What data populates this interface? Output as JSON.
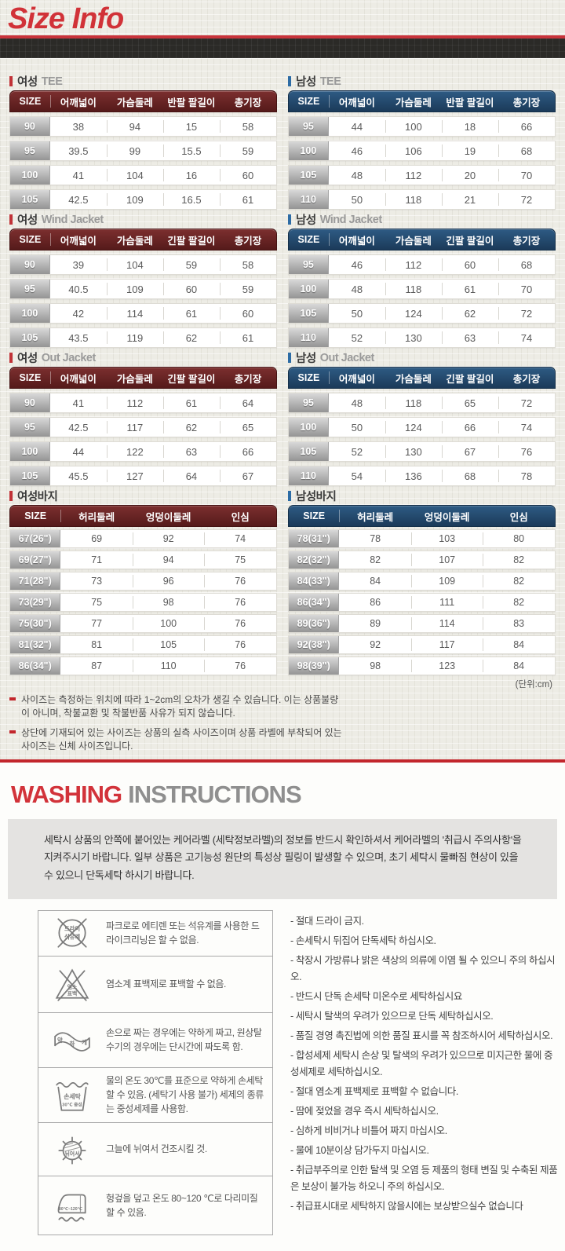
{
  "page": {
    "title": "Size Info",
    "unit_note": "(단위:cm)"
  },
  "colors": {
    "title_red": "#d13238",
    "accent_red": "#c13237",
    "accent_blue": "#2d6ca5",
    "header_maroon": "#5d1f1f",
    "header_navy": "#1e3c5d",
    "divider_red": "#c2262c",
    "size_cell_gray": "#a8a8a8"
  },
  "size_tables": [
    {
      "gender": "여성",
      "category": "TEE",
      "accent": "red",
      "headers": [
        "SIZE",
        "어깨넓이",
        "가슴둘레",
        "반팔 팔길이",
        "총기장"
      ],
      "rows": [
        [
          "90",
          "38",
          "94",
          "15",
          "58"
        ],
        [
          "95",
          "39.5",
          "99",
          "15.5",
          "59"
        ],
        [
          "100",
          "41",
          "104",
          "16",
          "60"
        ],
        [
          "105",
          "42.5",
          "109",
          "16.5",
          "61"
        ]
      ]
    },
    {
      "gender": "남성",
      "category": "TEE",
      "accent": "blue",
      "headers": [
        "SIZE",
        "어깨넓이",
        "가슴둘레",
        "반팔 팔길이",
        "총기장"
      ],
      "rows": [
        [
          "95",
          "44",
          "100",
          "18",
          "66"
        ],
        [
          "100",
          "46",
          "106",
          "19",
          "68"
        ],
        [
          "105",
          "48",
          "112",
          "20",
          "70"
        ],
        [
          "110",
          "50",
          "118",
          "21",
          "72"
        ]
      ]
    },
    {
      "gender": "여성",
      "category": "Wind Jacket",
      "accent": "red",
      "headers": [
        "SIZE",
        "어깨넓이",
        "가슴둘레",
        "긴팔 팔길이",
        "총기장"
      ],
      "rows": [
        [
          "90",
          "39",
          "104",
          "59",
          "58"
        ],
        [
          "95",
          "40.5",
          "109",
          "60",
          "59"
        ],
        [
          "100",
          "42",
          "114",
          "61",
          "60"
        ],
        [
          "105",
          "43.5",
          "119",
          "62",
          "61"
        ]
      ]
    },
    {
      "gender": "남성",
      "category": "Wind Jacket",
      "accent": "blue",
      "headers": [
        "SIZE",
        "어깨넓이",
        "가슴둘레",
        "긴팔 팔길이",
        "총기장"
      ],
      "rows": [
        [
          "95",
          "46",
          "112",
          "60",
          "68"
        ],
        [
          "100",
          "48",
          "118",
          "61",
          "70"
        ],
        [
          "105",
          "50",
          "124",
          "62",
          "72"
        ],
        [
          "110",
          "52",
          "130",
          "63",
          "74"
        ]
      ]
    },
    {
      "gender": "여성",
      "category": "Out Jacket",
      "accent": "red",
      "headers": [
        "SIZE",
        "어깨넓이",
        "가슴둘레",
        "긴팔 팔길이",
        "총기장"
      ],
      "rows": [
        [
          "90",
          "41",
          "112",
          "61",
          "64"
        ],
        [
          "95",
          "42.5",
          "117",
          "62",
          "65"
        ],
        [
          "100",
          "44",
          "122",
          "63",
          "66"
        ],
        [
          "105",
          "45.5",
          "127",
          "64",
          "67"
        ]
      ]
    },
    {
      "gender": "남성",
      "category": "Out Jacket",
      "accent": "blue",
      "headers": [
        "SIZE",
        "어깨넓이",
        "가슴둘레",
        "긴팔 팔길이",
        "총기장"
      ],
      "rows": [
        [
          "95",
          "48",
          "118",
          "65",
          "72"
        ],
        [
          "100",
          "50",
          "124",
          "66",
          "74"
        ],
        [
          "105",
          "52",
          "130",
          "67",
          "76"
        ],
        [
          "110",
          "54",
          "136",
          "68",
          "78"
        ]
      ]
    },
    {
      "gender": "여성바지",
      "category": "",
      "accent": "red",
      "headers": [
        "SIZE",
        "허리둘레",
        "엉덩이둘레",
        "인심"
      ],
      "rows": [
        [
          "67(26\")",
          "69",
          "92",
          "74"
        ],
        [
          "69(27\")",
          "71",
          "94",
          "75"
        ],
        [
          "71(28\")",
          "73",
          "96",
          "76"
        ],
        [
          "73(29\")",
          "75",
          "98",
          "76"
        ],
        [
          "75(30\")",
          "77",
          "100",
          "76"
        ],
        [
          "81(32\")",
          "81",
          "105",
          "76"
        ],
        [
          "86(34\")",
          "87",
          "110",
          "76"
        ]
      ]
    },
    {
      "gender": "남성바지",
      "category": "",
      "accent": "blue",
      "headers": [
        "SIZE",
        "허리둘레",
        "엉덩이둘레",
        "인심"
      ],
      "rows": [
        [
          "78(31\")",
          "78",
          "103",
          "80"
        ],
        [
          "82(32\")",
          "82",
          "107",
          "82"
        ],
        [
          "84(33\")",
          "84",
          "109",
          "82"
        ],
        [
          "86(34\")",
          "86",
          "111",
          "82"
        ],
        [
          "89(36\")",
          "89",
          "114",
          "83"
        ],
        [
          "92(38\")",
          "92",
          "117",
          "84"
        ],
        [
          "98(39\")",
          "98",
          "123",
          "84"
        ]
      ]
    }
  ],
  "size_notes": [
    "사이즈는 측정하는 위치에 따라 1~2cm의 오차가 생길 수 있습니다. 이는 상품불량이 아니며, 착불교환 및 착불반품 사유가 되지 않습니다.",
    "상단에 기재되어 있는 사이즈는 상품의 실측 사이즈이며 상품 라벨에 부착되어 있는 사이즈는 신체 사이즈입니다."
  ],
  "washing": {
    "title_red": "WASHING",
    "title_gray": "INSTRUCTIONS",
    "intro": "세탁시 상품의 안쪽에 붙어있는 케어라벨 (세탁정보라벨)의 정보를 반드시 확인하셔서 케어라벨의 '취급시 주의사항'을 지켜주시기 바랍니다. 일부 상품은 고기능성 원단의 특성상 필링이 발생할 수 있으며, 초기 세탁시 물빠짐 현상이 있을 수 있으니 단독세탁 하시기 바랍니다.",
    "care_rows": [
      {
        "icon": "no-dry-clean-icon",
        "icon_label": [
          "드라이",
          "석유계"
        ],
        "text": "파크로로 에티렌 또는 석유계를 사용한 드라이크리닝은 할 수 없음."
      },
      {
        "icon": "no-bleach-icon",
        "icon_label": [
          "염소",
          "표백"
        ],
        "text": "염소계 표백제로 표백할 수 없음."
      },
      {
        "icon": "wring-gently-icon",
        "icon_label": [
          "약",
          "하",
          "게"
        ],
        "text": "손으로 짜는 경우에는 약하게 짜고, 원상탈수기의 경우에는 단시간에 짜도록 함."
      },
      {
        "icon": "hand-wash-30-icon",
        "icon_label": [
          "손세탁",
          "30℃ 중성"
        ],
        "text": "물의 온도 30℃를 표준으로 약하게 손세탁 할 수 있음. (세탁기 사용 불가) 세제의 종류는 중성세제를 사용함."
      },
      {
        "icon": "shade-dry-icon",
        "icon_label": [
          "뉘어서"
        ],
        "text": "그늘에 뉘여서 건조시킬 것."
      },
      {
        "icon": "iron-80-120-icon",
        "icon_label": [
          "80℃~120℃"
        ],
        "text": "헝겊을 덮고 온도 80~120 ℃로 다리미질 할 수 있음."
      }
    ],
    "warnings": [
      "- 절대 드라이 금지.",
      "- 손세탁시 뒤집어 단독세탁 하십시오.",
      "- 착장시 가방류나 밝은 색상의 의류에 이염 될 수 있으니 주의 하십시오.",
      "- 반드시 단독 손세탁 미온수로 세탁하십시요",
      "- 세탁시 탈색의 우려가 있으므로 단독 세탁하십시오.",
      "- 품질 경영 촉진법에 의한 품질 표시를 꼭 참조하시어 세탁하십시오.",
      "- 합성세제 세탁시 손상 및 탈색의 우려가 있으므로 미지근한 물에 중성세제로 세탁하십시오.",
      "- 절대 염소계 표백제로 표백할 수 없습니다.",
      "- 땀에 젖었을 경우 즉시 세탁하십시오.",
      "- 심하게 비비거나 비틀어 짜지 마십시오.",
      "- 물에 10분이상 담가두지 마십시오.",
      "- 취급부주의로 인한 탈색 및 오염 등 제품의 형태 변질 및 수축된 제품은 보상이 불가능 하오니 주의 하십시오.",
      "- 취급표시대로 세탁하지 않을시에는 보상받으실수 없습니다"
    ]
  }
}
